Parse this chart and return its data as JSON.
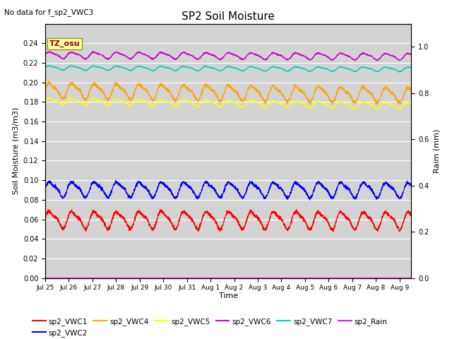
{
  "title": "SP2 Soil Moisture",
  "no_data_text": "No data for f_sp2_VWC3",
  "tz_label": "TZ_osu",
  "xlabel": "Time",
  "ylabel_left": "Soil Moisture (m3/m3)",
  "ylabel_right": "Raim (mm)",
  "xlim_days": [
    0,
    15.5
  ],
  "ylim_left": [
    0.0,
    0.26
  ],
  "ylim_right": [
    0.0,
    1.1
  ],
  "xtick_labels": [
    "Jul 25",
    "Jul 26",
    "Jul 27",
    "Jul 28",
    "Jul 29",
    "Jul 30",
    "Jul 31",
    "Aug 1",
    "Aug 2",
    "Aug 3",
    "Aug 4",
    "Aug 5",
    "Aug 6",
    "Aug 7",
    "Aug 8",
    "Aug 9"
  ],
  "yticks_left": [
    0.0,
    0.02,
    0.04,
    0.06,
    0.08,
    0.1,
    0.12,
    0.14,
    0.16,
    0.18,
    0.2,
    0.22,
    0.24
  ],
  "yticks_right": [
    0.0,
    0.2,
    0.4,
    0.6,
    0.8,
    1.0
  ],
  "background_color": "#d3d3d3",
  "series": {
    "sp2_VWC1": {
      "color": "#ff0000",
      "base": 0.06,
      "amp": 0.008,
      "period": 0.95,
      "trend": -5e-05
    },
    "sp2_VWC2": {
      "color": "#0000ff",
      "base": 0.091,
      "amp": 0.007,
      "period": 0.95,
      "trend": -5e-05
    },
    "sp2_VWC4": {
      "color": "#ffa500",
      "base": 0.192,
      "amp": 0.007,
      "period": 0.95,
      "trend": -0.0003
    },
    "sp2_VWC5": {
      "color": "#ffff00",
      "base": 0.181,
      "amp": 0.003,
      "period": 0.95,
      "trend": -0.0003
    },
    "sp2_VWC6": {
      "color": "#cc00cc",
      "base": 0.228,
      "amp": 0.003,
      "period": 0.95,
      "trend": -0.0001
    },
    "sp2_VWC7": {
      "color": "#00cccc",
      "base": 0.215,
      "amp": 0.002,
      "period": 0.95,
      "trend": -0.0001
    },
    "sp2_Rain": {
      "color": "#ff00ff",
      "base": 0.0,
      "amp": 0.0,
      "period": 1.0,
      "trend": 0.0
    }
  },
  "legend_order": [
    "sp2_VWC1",
    "sp2_VWC2",
    "sp2_VWC4",
    "sp2_VWC5",
    "sp2_VWC6",
    "sp2_VWC7",
    "sp2_Rain"
  ]
}
